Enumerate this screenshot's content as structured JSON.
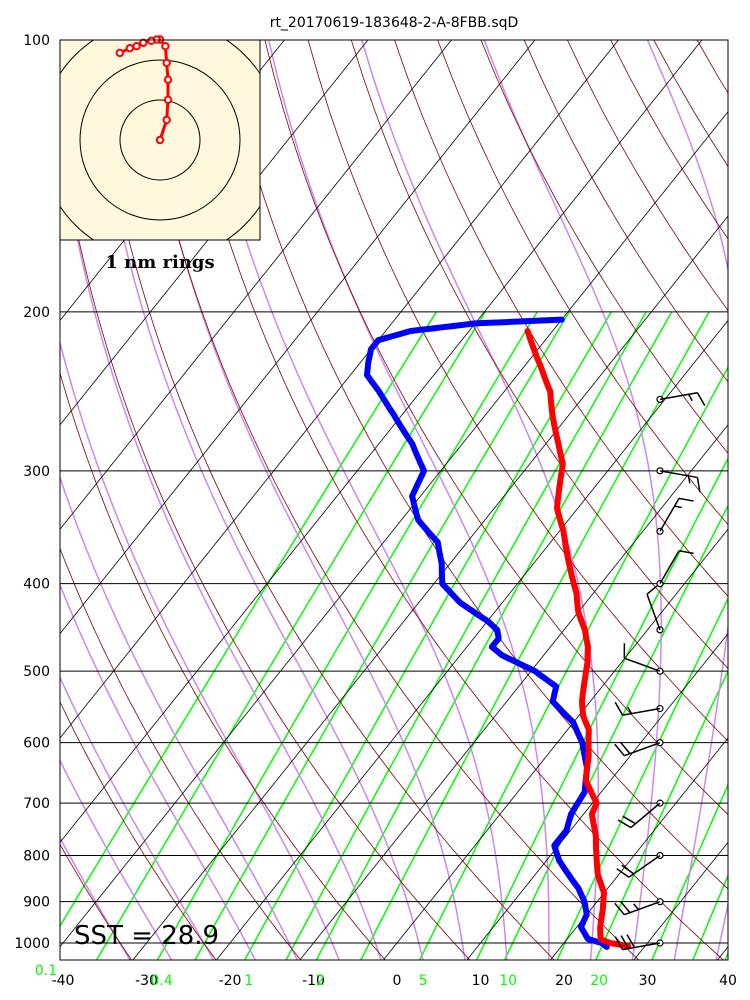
{
  "chart_data": {
    "type": "skew-t",
    "title": "rt_20170619-183648-2-A-8FBB.sqD",
    "annotation": "SST = 28.9",
    "hodograph_label": "1 nm rings",
    "ylim": [
      1000,
      100
    ],
    "xlim": [
      -40,
      40
    ],
    "yscale": "log",
    "pressure_ticks": [
      100,
      200,
      300,
      400,
      500,
      600,
      700,
      800,
      900,
      1000
    ],
    "temperature_ticks": [
      -40,
      -30,
      -20,
      -10,
      0,
      10,
      20,
      30,
      40
    ],
    "mixing_ratio_labels": [
      "0.1",
      "0.4",
      "1",
      "2",
      "5",
      "10",
      "20"
    ],
    "temperature": {
      "name": "Temperature",
      "color": "#ff0000",
      "points": [
        [
          1008,
          28
        ],
        [
          1000,
          25.5
        ],
        [
          990,
          24
        ],
        [
          960,
          22.8
        ],
        [
          920,
          21.5
        ],
        [
          880,
          20
        ],
        [
          840,
          17.5
        ],
        [
          800,
          15.5
        ],
        [
          760,
          13.5
        ],
        [
          720,
          11
        ],
        [
          700,
          10.5
        ],
        [
          660,
          7
        ],
        [
          620,
          5
        ],
        [
          580,
          2.5
        ],
        [
          560,
          0.5
        ],
        [
          540,
          -1
        ],
        [
          510,
          -2.8
        ],
        [
          490,
          -4
        ],
        [
          470,
          -5.5
        ],
        [
          450,
          -7.5
        ],
        [
          430,
          -10
        ],
        [
          410,
          -12
        ],
        [
          390,
          -14.5
        ],
        [
          370,
          -17
        ],
        [
          350,
          -19.5
        ],
        [
          330,
          -22.5
        ],
        [
          310,
          -24.5
        ],
        [
          295,
          -26
        ],
        [
          280,
          -28.5
        ],
        [
          260,
          -32
        ],
        [
          245,
          -34.5
        ],
        [
          230,
          -38
        ],
        [
          220,
          -40.5
        ],
        [
          210,
          -43
        ]
      ]
    },
    "dewpoint": {
      "name": "Dewpoint",
      "color": "#0000ff",
      "points": [
        [
          1010,
          25.5
        ],
        [
          1000,
          24.5
        ],
        [
          990,
          22.5
        ],
        [
          960,
          20.5
        ],
        [
          930,
          20
        ],
        [
          900,
          18.5
        ],
        [
          870,
          16.5
        ],
        [
          840,
          14
        ],
        [
          810,
          11.5
        ],
        [
          780,
          9.5
        ],
        [
          750,
          9.5
        ],
        [
          720,
          8.5
        ],
        [
          680,
          8
        ],
        [
          640,
          6
        ],
        [
          600,
          3
        ],
        [
          570,
          0
        ],
        [
          540,
          -4.5
        ],
        [
          520,
          -5.5
        ],
        [
          500,
          -9.5
        ],
        [
          480,
          -15
        ],
        [
          470,
          -17
        ],
        [
          460,
          -17
        ],
        [
          450,
          -18
        ],
        [
          440,
          -20
        ],
        [
          420,
          -25
        ],
        [
          400,
          -29
        ],
        [
          380,
          -31
        ],
        [
          360,
          -33.5
        ],
        [
          340,
          -38
        ],
        [
          320,
          -41
        ],
        [
          310,
          -41.5
        ],
        [
          300,
          -42
        ],
        [
          280,
          -46
        ],
        [
          260,
          -51
        ],
        [
          245,
          -55
        ],
        [
          235,
          -58
        ],
        [
          228,
          -59
        ],
        [
          220,
          -60
        ],
        [
          215,
          -60
        ],
        [
          210,
          -57
        ],
        [
          206,
          -50
        ],
        [
          204,
          -40
        ]
      ]
    },
    "winds": [
      {
        "p": 1000,
        "dir": 260,
        "speed": 30
      },
      {
        "p": 900,
        "dir": 250,
        "speed": 25
      },
      {
        "p": 800,
        "dir": 235,
        "speed": 20
      },
      {
        "p": 700,
        "dir": 230,
        "speed": 20
      },
      {
        "p": 600,
        "dir": 250,
        "speed": 20
      },
      {
        "p": 550,
        "dir": 260,
        "speed": 15
      },
      {
        "p": 500,
        "dir": 290,
        "speed": 10
      },
      {
        "p": 450,
        "dir": 340,
        "speed": 10
      },
      {
        "p": 400,
        "dir": 30,
        "speed": 10
      },
      {
        "p": 350,
        "dir": 30,
        "speed": 15
      },
      {
        "p": 300,
        "dir": 100,
        "speed": 15
      },
      {
        "p": 250,
        "dir": 80,
        "speed": 15
      }
    ],
    "hodograph": {
      "rings_count": 3,
      "points": [
        [
          0,
          0
        ],
        [
          1,
          3
        ],
        [
          1.2,
          6
        ],
        [
          1.2,
          9
        ],
        [
          1,
          11.5
        ],
        [
          0.8,
          14
        ],
        [
          0,
          15
        ],
        [
          -0.5,
          15
        ],
        [
          -1.3,
          14.8
        ],
        [
          -2.5,
          14.5
        ],
        [
          -3.5,
          14
        ],
        [
          -4.5,
          13.7
        ],
        [
          -6,
          13
        ]
      ]
    },
    "colors": {
      "background": "#ffffff",
      "isotherm": "#000000",
      "dry_adiabat": "#800000",
      "moist_adiabat": "#cc88ee",
      "mixing_ratio": "#00ff00",
      "hodograph_bg": "#fff8dc"
    }
  }
}
